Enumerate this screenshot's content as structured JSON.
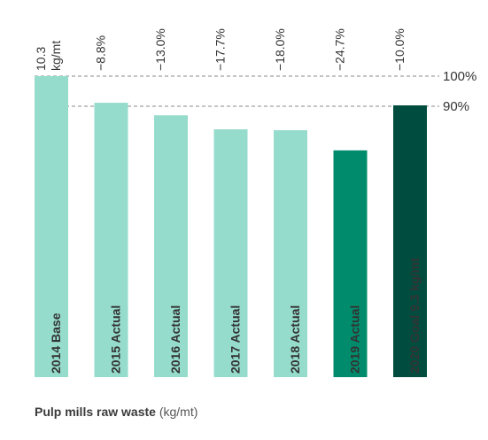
{
  "chart_data": {
    "type": "bar",
    "title": "",
    "xlabel": "",
    "ylabel": "",
    "categories": [
      "2014 Base",
      "2015 Actual",
      "2016 Actual",
      "2017 Actual",
      "2018 Actual",
      "2019 Actual",
      "2020 Goal 9.3 kg/mt"
    ],
    "values": [
      10.3,
      9.39,
      8.96,
      8.48,
      8.45,
      7.76,
      9.3
    ],
    "value_labels": [
      "10.3\nkg/mt",
      "−8.8%",
      "−13.0%",
      "−17.7%",
      "−18.0%",
      "−24.7%",
      "−10.0%"
    ],
    "bar_colors": [
      "#96dccc",
      "#96dccc",
      "#96dccc",
      "#96dccc",
      "#96dccc",
      "#008c6c",
      "#004d40"
    ],
    "reference_lines": [
      {
        "label": "100%",
        "value": 10.3
      },
      {
        "label": "90%",
        "value": 9.27
      }
    ],
    "ylim": [
      0,
      10.3
    ],
    "grid": false,
    "legend": "none"
  },
  "caption": {
    "bold": "Pulp mills raw waste",
    "unit": "(kg/mt)"
  },
  "colors": {
    "ref_line": "#8a8a8a",
    "label_text": "#333333"
  }
}
